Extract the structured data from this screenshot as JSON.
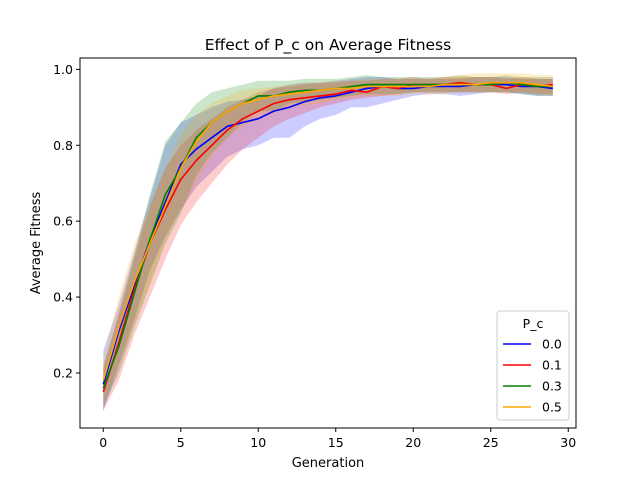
{
  "chart_data": {
    "type": "line",
    "title": "Effect of P_c on Average Fitness",
    "xlabel": "Generation",
    "ylabel": "Average Fitness",
    "xlim": [
      -1.5,
      30.5
    ],
    "ylim": [
      0.055,
      1.03
    ],
    "xticks": [
      0,
      5,
      10,
      15,
      20,
      25,
      30
    ],
    "yticks": [
      0.2,
      0.4,
      0.6,
      0.8,
      1.0
    ],
    "xtick_labels": [
      "0",
      "5",
      "10",
      "15",
      "20",
      "25",
      "30"
    ],
    "ytick_labels": [
      "0.2",
      "0.4",
      "0.6",
      "0.8",
      "1.0"
    ],
    "grid": false,
    "legend": {
      "title": "P_c",
      "position": "lower right"
    },
    "x": [
      0,
      1,
      2,
      3,
      4,
      5,
      6,
      7,
      8,
      9,
      10,
      11,
      12,
      13,
      14,
      15,
      16,
      17,
      18,
      19,
      20,
      21,
      22,
      23,
      24,
      25,
      26,
      27,
      28,
      29
    ],
    "series": [
      {
        "name": "0.0",
        "color": "#0000ff",
        "values": [
          0.17,
          0.31,
          0.43,
          0.55,
          0.65,
          0.75,
          0.79,
          0.82,
          0.85,
          0.86,
          0.87,
          0.89,
          0.9,
          0.915,
          0.925,
          0.93,
          0.94,
          0.95,
          0.955,
          0.95,
          0.95,
          0.955,
          0.955,
          0.955,
          0.96,
          0.96,
          0.96,
          0.955,
          0.955,
          0.95
        ],
        "lower": [
          0.1,
          0.22,
          0.34,
          0.47,
          0.56,
          0.63,
          0.69,
          0.73,
          0.77,
          0.79,
          0.8,
          0.82,
          0.82,
          0.85,
          0.87,
          0.88,
          0.9,
          0.9,
          0.91,
          0.92,
          0.93,
          0.935,
          0.935,
          0.93,
          0.935,
          0.94,
          0.94,
          0.935,
          0.93,
          0.93
        ],
        "upper": [
          0.26,
          0.38,
          0.52,
          0.66,
          0.8,
          0.86,
          0.88,
          0.9,
          0.915,
          0.92,
          0.93,
          0.95,
          0.96,
          0.965,
          0.965,
          0.97,
          0.975,
          0.98,
          0.98,
          0.975,
          0.975,
          0.975,
          0.975,
          0.975,
          0.98,
          0.98,
          0.98,
          0.975,
          0.975,
          0.975
        ]
      },
      {
        "name": "0.1",
        "color": "#ff0000",
        "values": [
          0.15,
          0.28,
          0.42,
          0.54,
          0.63,
          0.71,
          0.76,
          0.8,
          0.84,
          0.87,
          0.89,
          0.91,
          0.92,
          0.925,
          0.93,
          0.935,
          0.945,
          0.94,
          0.955,
          0.95,
          0.96,
          0.96,
          0.96,
          0.965,
          0.96,
          0.96,
          0.95,
          0.96,
          0.955,
          0.96
        ],
        "lower": [
          0.1,
          0.18,
          0.3,
          0.4,
          0.5,
          0.59,
          0.65,
          0.7,
          0.75,
          0.79,
          0.82,
          0.85,
          0.87,
          0.885,
          0.9,
          0.91,
          0.92,
          0.925,
          0.93,
          0.935,
          0.94,
          0.94,
          0.94,
          0.94,
          0.94,
          0.94,
          0.935,
          0.94,
          0.935,
          0.935
        ],
        "upper": [
          0.21,
          0.36,
          0.5,
          0.64,
          0.74,
          0.8,
          0.84,
          0.87,
          0.9,
          0.92,
          0.94,
          0.95,
          0.955,
          0.96,
          0.965,
          0.965,
          0.97,
          0.97,
          0.975,
          0.975,
          0.98,
          0.975,
          0.98,
          0.98,
          0.98,
          0.98,
          0.975,
          0.98,
          0.975,
          0.975
        ]
      },
      {
        "name": "0.3",
        "color": "#008000",
        "values": [
          0.16,
          0.27,
          0.41,
          0.55,
          0.67,
          0.74,
          0.82,
          0.86,
          0.89,
          0.91,
          0.93,
          0.93,
          0.94,
          0.945,
          0.945,
          0.95,
          0.955,
          0.96,
          0.96,
          0.96,
          0.96,
          0.96,
          0.96,
          0.96,
          0.96,
          0.96,
          0.965,
          0.96,
          0.955,
          0.955
        ],
        "lower": [
          0.11,
          0.2,
          0.32,
          0.43,
          0.54,
          0.62,
          0.72,
          0.78,
          0.82,
          0.86,
          0.89,
          0.89,
          0.91,
          0.915,
          0.92,
          0.925,
          0.93,
          0.935,
          0.935,
          0.935,
          0.94,
          0.94,
          0.94,
          0.94,
          0.94,
          0.94,
          0.94,
          0.935,
          0.93,
          0.93
        ],
        "upper": [
          0.22,
          0.35,
          0.51,
          0.67,
          0.81,
          0.86,
          0.91,
          0.94,
          0.95,
          0.96,
          0.97,
          0.97,
          0.97,
          0.975,
          0.975,
          0.975,
          0.98,
          0.985,
          0.98,
          0.98,
          0.98,
          0.98,
          0.98,
          0.985,
          0.98,
          0.98,
          0.985,
          0.98,
          0.98,
          0.98
        ]
      },
      {
        "name": "0.5",
        "color": "#ffa500",
        "values": [
          0.18,
          0.32,
          0.44,
          0.54,
          0.64,
          0.74,
          0.81,
          0.86,
          0.89,
          0.91,
          0.92,
          0.93,
          0.935,
          0.94,
          0.945,
          0.95,
          0.95,
          0.955,
          0.955,
          0.955,
          0.955,
          0.955,
          0.96,
          0.96,
          0.96,
          0.965,
          0.965,
          0.965,
          0.96,
          0.955
        ],
        "lower": [
          0.12,
          0.22,
          0.33,
          0.44,
          0.55,
          0.63,
          0.7,
          0.77,
          0.82,
          0.85,
          0.87,
          0.885,
          0.9,
          0.905,
          0.91,
          0.92,
          0.925,
          0.93,
          0.93,
          0.93,
          0.935,
          0.935,
          0.935,
          0.94,
          0.94,
          0.94,
          0.94,
          0.94,
          0.935,
          0.93
        ],
        "upper": [
          0.24,
          0.4,
          0.54,
          0.64,
          0.74,
          0.83,
          0.88,
          0.91,
          0.93,
          0.945,
          0.95,
          0.955,
          0.96,
          0.965,
          0.965,
          0.97,
          0.97,
          0.975,
          0.975,
          0.975,
          0.975,
          0.975,
          0.98,
          0.985,
          0.99,
          0.99,
          0.99,
          0.99,
          0.985,
          0.985
        ]
      }
    ]
  }
}
